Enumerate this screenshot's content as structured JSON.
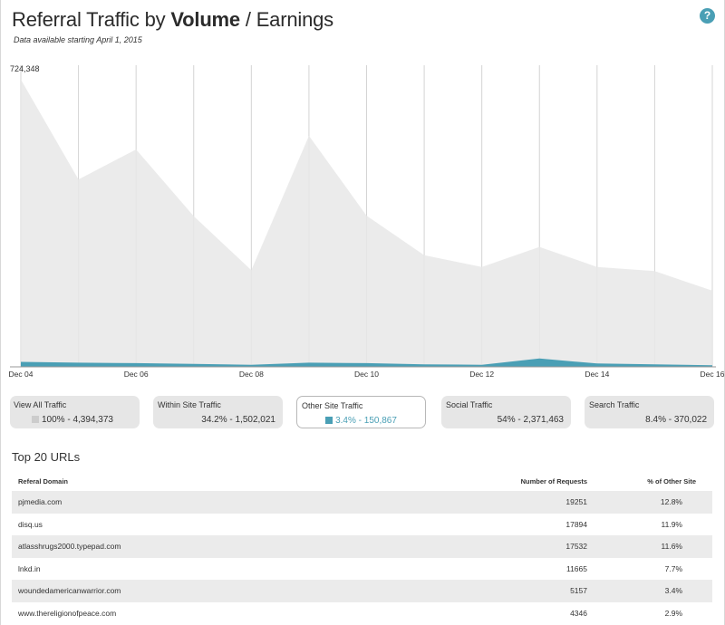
{
  "header": {
    "title_prefix": "Referral Traffic by ",
    "title_bold": "Volume",
    "title_suffix": " / Earnings",
    "subtitle": "Data available starting April 1, 2015",
    "help_label": "?"
  },
  "colors": {
    "total_area": "#e8e8e8",
    "other_site_area": "#4a9fb5",
    "gridline": "#d4d4d4",
    "tile_bg": "#e6e6e6",
    "row_alt": "#ebebeb"
  },
  "chart_data": {
    "type": "area",
    "title": "",
    "xlabel": "",
    "ylabel": "",
    "y_max_label": "724,348",
    "ylim": [
      0,
      724348
    ],
    "grid": "vertical",
    "x": [
      "Dec 04",
      "Dec 05",
      "Dec 06",
      "Dec 07",
      "Dec 08",
      "Dec 09",
      "Dec 10",
      "Dec 11",
      "Dec 12",
      "Dec 13",
      "Dec 14",
      "Dec 15",
      "Dec 16"
    ],
    "tick_labels": [
      "Dec 04",
      "Dec 06",
      "Dec 08",
      "Dec 10",
      "Dec 12",
      "Dec 14",
      "Dec 16"
    ],
    "series": [
      {
        "values": [
          690000,
          450000,
          522000,
          362000,
          232000,
          555000,
          363000,
          268000,
          240000,
          288000,
          240000,
          230000,
          183000
        ]
      },
      {
        "values": [
          12000,
          10000,
          9000,
          7000,
          5000,
          10000,
          9000,
          6000,
          5000,
          20000,
          8000,
          6000,
          4000
        ]
      }
    ]
  },
  "tiles": [
    {
      "label": "View All Traffic",
      "value": "100% - 4,394,373",
      "swatch": "#cccccc"
    },
    {
      "label": "Within Site Traffic",
      "value": "34.2% - 1,502,021"
    },
    {
      "label": "Other Site Traffic",
      "value": "3.4% - 150,867",
      "swatch": "#4a9fb5"
    },
    {
      "label": "Social Traffic",
      "value": "54% - 2,371,463"
    },
    {
      "label": "Search Traffic",
      "value": "8.4% - 370,022"
    }
  ],
  "table": {
    "title": "Top 20 URLs",
    "columns": [
      "Referal Domain",
      "Number of Requests",
      "% of Other Site"
    ],
    "rows": [
      [
        "pjmedia.com",
        "19251",
        "12.8%"
      ],
      [
        "disq.us",
        "17894",
        "11.9%"
      ],
      [
        "atlasshrugs2000.typepad.com",
        "17532",
        "11.6%"
      ],
      [
        "lnkd.in",
        "11665",
        "7.7%"
      ],
      [
        "woundedamericanwarrior.com",
        "5157",
        "3.4%"
      ],
      [
        "www.thereligionofpeace.com",
        "4346",
        "2.9%"
      ]
    ]
  }
}
